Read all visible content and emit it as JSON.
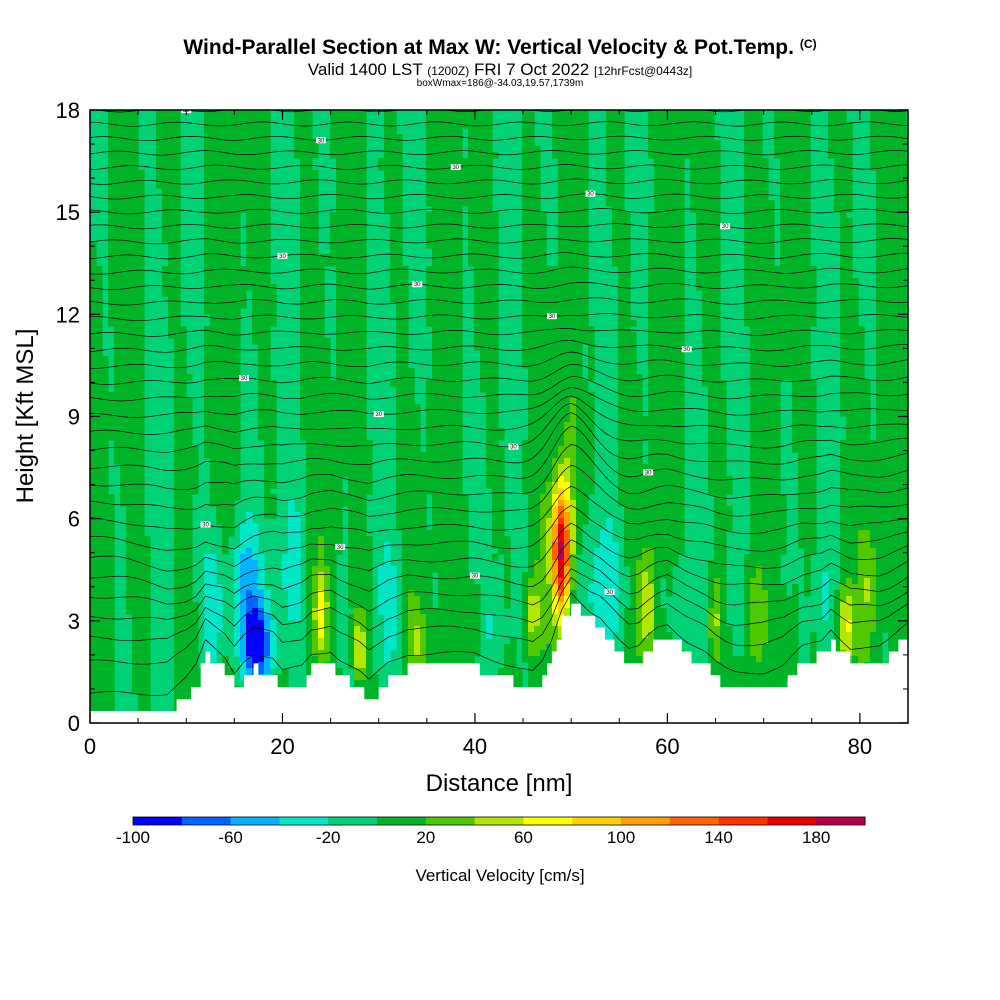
{
  "header": {
    "title": "Wind-Parallel Section at Max W: Vertical Velocity & Pot.Temp.",
    "copyright": "(C)",
    "valid_prefix": "Valid 1400 LST",
    "valid_utc": "(1200Z)",
    "valid_date": "FRI 7 Oct 2022",
    "forecast": "[12hrFcst@0443z]",
    "box_info": "boxWmax=186@-34.03,19.57,1739m"
  },
  "chart_data": {
    "type": "heatmap",
    "xlabel": "Distance [nm]",
    "ylabel": "Height [Kft MSL]",
    "xlim": [
      0,
      85
    ],
    "ylim": [
      0,
      18
    ],
    "x_ticks": [
      0,
      20,
      40,
      60,
      80
    ],
    "x_tick_labels": [
      "0",
      "20",
      "40",
      "60",
      "80"
    ],
    "y_ticks": [
      0,
      3,
      6,
      9,
      12,
      15,
      18
    ],
    "y_tick_labels": [
      "0",
      "3",
      "6",
      "9",
      "12",
      "15",
      "18"
    ],
    "colorbar": {
      "title": "Vertical Velocity [cm/s]",
      "bounds": [
        -100,
        -80,
        -60,
        -40,
        -20,
        0,
        20,
        40,
        60,
        80,
        100,
        120,
        140,
        160,
        180,
        200
      ],
      "colors": [
        "#0000ff",
        "#0064ff",
        "#00b4ff",
        "#00e6c8",
        "#00d278",
        "#00b428",
        "#50c800",
        "#b4e600",
        "#ffff00",
        "#ffd200",
        "#ffa000",
        "#ff6400",
        "#ff3200",
        "#e60000",
        "#b4004b"
      ],
      "tick_values": [
        -100,
        -60,
        -20,
        20,
        60,
        100,
        140,
        180
      ],
      "tick_labels": [
        "-100",
        "-60",
        "-20",
        "20",
        "60",
        "100",
        "140",
        "180"
      ]
    },
    "terrain": {
      "x": [
        0,
        8,
        10,
        11,
        12,
        14,
        15,
        16,
        17,
        19,
        20,
        22,
        23,
        25,
        26,
        28,
        29,
        30,
        31,
        33,
        35,
        40,
        43,
        46,
        47,
        48,
        49,
        50,
        51,
        52,
        53,
        54,
        55,
        56,
        57,
        58,
        59,
        60,
        61,
        62,
        63,
        64,
        65,
        66,
        67,
        68,
        70,
        72,
        73,
        74,
        75,
        76,
        77,
        78,
        79,
        80,
        81,
        82,
        83,
        84,
        85
      ],
      "y": [
        0.3,
        0.3,
        0.8,
        1.2,
        2.0,
        1.5,
        1.0,
        1.4,
        1.6,
        1.4,
        1.0,
        1.2,
        1.6,
        1.7,
        1.4,
        1.0,
        0.7,
        1.0,
        1.3,
        1.6,
        1.6,
        1.6,
        1.3,
        1.0,
        1.3,
        2.0,
        3.0,
        3.6,
        3.3,
        3.0,
        2.8,
        2.4,
        2.0,
        1.7,
        1.8,
        2.2,
        2.5,
        2.6,
        2.3,
        2.0,
        1.8,
        1.6,
        1.3,
        1.1,
        1.0,
        1.0,
        1.0,
        1.2,
        1.5,
        1.8,
        1.9,
        2.0,
        2.4,
        2.1,
        1.8,
        1.8,
        1.8,
        1.8,
        2.0,
        2.3,
        2.6
      ]
    },
    "updrafts": [
      {
        "x": 49,
        "z": 5.0,
        "sx": 0.7,
        "sz": 1.4,
        "w": 186
      },
      {
        "x": 78.5,
        "z": 2.8,
        "sx": 0.5,
        "sz": 0.9,
        "w": 70
      },
      {
        "x": 24,
        "z": 3.2,
        "sx": 0.5,
        "sz": 0.8,
        "w": 60
      },
      {
        "x": 28,
        "z": 2.2,
        "sx": 0.5,
        "sz": 0.8,
        "w": 55
      },
      {
        "x": 58,
        "z": 3.5,
        "sx": 0.6,
        "sz": 1.2,
        "w": 50
      },
      {
        "x": 46,
        "z": 3.2,
        "sx": 0.5,
        "sz": 0.8,
        "w": 45
      },
      {
        "x": 65,
        "z": 3.0,
        "sx": 0.5,
        "sz": 1.0,
        "w": 45
      },
      {
        "x": 40,
        "z": 3.0,
        "sx": 0.6,
        "sz": 0.9,
        "w": 35
      },
      {
        "x": 34,
        "z": 2.5,
        "sx": 0.6,
        "sz": 0.9,
        "w": 30
      },
      {
        "x": 81,
        "z": 4.0,
        "sx": 0.8,
        "sz": 1.2,
        "w": 30
      },
      {
        "x": 69,
        "z": 3.0,
        "sx": 0.6,
        "sz": 1.0,
        "w": 35
      },
      {
        "x": 73,
        "z": 2.5,
        "sx": 0.5,
        "sz": 0.9,
        "w": 30
      },
      {
        "x": 50,
        "z": 8.0,
        "sx": 0.6,
        "sz": 1.5,
        "w": 25
      }
    ],
    "downdrafts": [
      {
        "x": 17.5,
        "z": 2.3,
        "sx": 1.0,
        "sz": 0.8,
        "w": -85
      },
      {
        "x": 16,
        "z": 3.8,
        "sx": 1.3,
        "sz": 1.5,
        "w": -50
      },
      {
        "x": 12.5,
        "z": 3.5,
        "sx": 0.9,
        "sz": 1.5,
        "w": -35
      },
      {
        "x": 21,
        "z": 4.5,
        "sx": 1.0,
        "sz": 1.6,
        "w": -25
      },
      {
        "x": 53,
        "z": 3.8,
        "sx": 1.8,
        "sz": 1.2,
        "w": -30
      },
      {
        "x": 61.5,
        "z": 3.5,
        "sx": 1.0,
        "sz": 1.1,
        "w": -25
      },
      {
        "x": 51,
        "z": 10.0,
        "sx": 0.4,
        "sz": 1.8,
        "w": -15
      },
      {
        "x": 31,
        "z": 3.5,
        "sx": 0.8,
        "sz": 1.2,
        "w": -20
      },
      {
        "x": 42,
        "z": 3.0,
        "sx": 0.8,
        "sz": 1.2,
        "w": -20
      },
      {
        "x": 67,
        "z": 3.5,
        "sx": 0.6,
        "sz": 1.2,
        "w": -20
      },
      {
        "x": 76,
        "z": 3.5,
        "sx": 0.6,
        "sz": 1.2,
        "w": -20
      },
      {
        "x": 83,
        "z": 15.0,
        "sx": 0.4,
        "sz": 2.0,
        "w": -15
      }
    ],
    "theta_contours": {
      "label_example": "30",
      "levels": 35,
      "lowest_height_kft": 0.6,
      "highest_height_kft": 18.0
    }
  }
}
